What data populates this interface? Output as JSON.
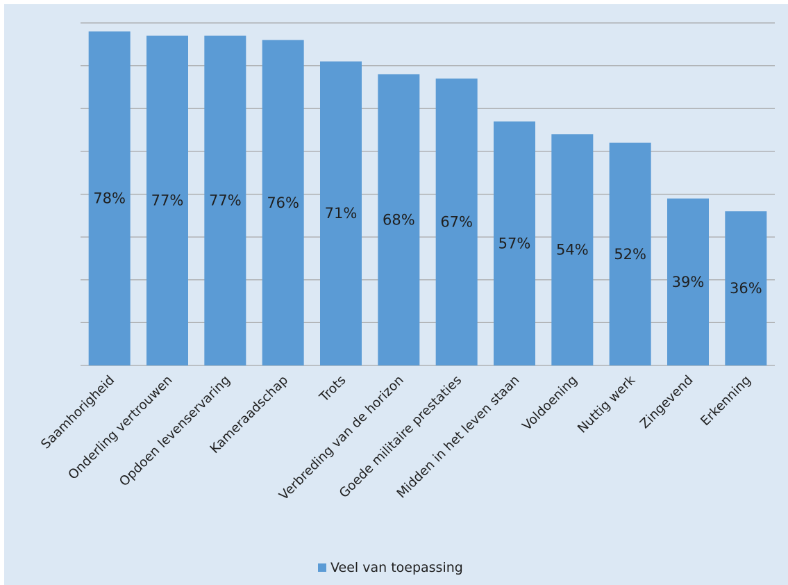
{
  "chart_data": {
    "type": "bar",
    "categories": [
      "Saamhorigheid",
      "Onderling vertrouwen",
      "Opdoen levenservaring",
      "Kameraadschap",
      "Trots",
      "Verbreding van de horizon",
      "Goede militaire prestaties",
      "Midden in het leven staan",
      "Voldoening",
      "Nuttig werk",
      "Zingevend",
      "Erkenning"
    ],
    "series": [
      {
        "name": "Veel van toepassing",
        "values": [
          78,
          77,
          77,
          76,
          71,
          68,
          67,
          57,
          54,
          52,
          39,
          36
        ],
        "labels": [
          "78%",
          "77%",
          "77%",
          "76%",
          "71%",
          "68%",
          "67%",
          "57%",
          "54%",
          "52%",
          "39%",
          "36%"
        ]
      }
    ],
    "ylim": [
      0,
      80
    ],
    "grid": true,
    "gridline_step": 10,
    "legend_position": "bottom",
    "colors": {
      "bar": "#5b9bd5",
      "background": "#dce8f4",
      "grid": "#a6a6a6",
      "text": "#1f1f1f"
    }
  }
}
